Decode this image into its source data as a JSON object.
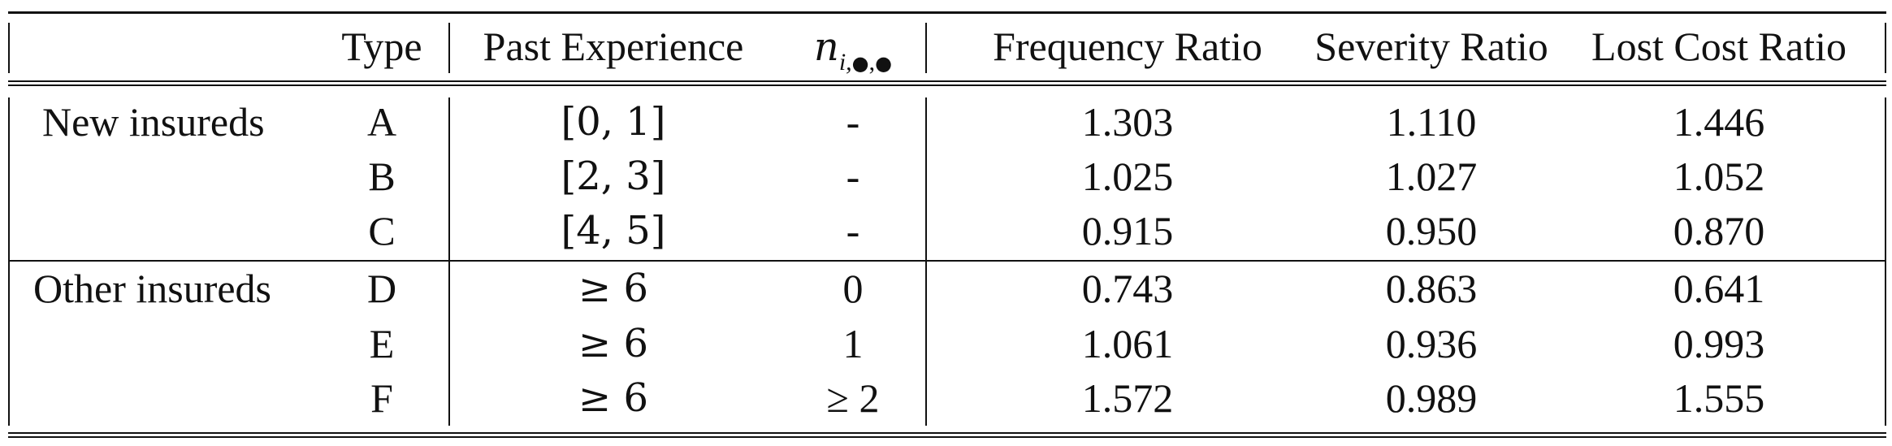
{
  "table": {
    "headers": {
      "group": "",
      "type": "Type",
      "past_experience": "Past Experience",
      "n_main": "n",
      "n_sub": "i,",
      "n_dot_1": "●",
      "n_comma": ",",
      "n_dot_2": "●",
      "frequency_ratio": "Frequency Ratio",
      "severity_ratio": "Severity Ratio",
      "lost_cost_ratio": "Lost Cost Ratio"
    },
    "rows": [
      {
        "group": "New insureds",
        "type": "A",
        "past_experience": "[0, 1]",
        "n": "-",
        "frequency_ratio": "1.303",
        "severity_ratio": "1.110",
        "lost_cost_ratio": "1.446"
      },
      {
        "group": "",
        "type": "B",
        "past_experience": "[2, 3]",
        "n": "-",
        "frequency_ratio": "1.025",
        "severity_ratio": "1.027",
        "lost_cost_ratio": "1.052"
      },
      {
        "group": "",
        "type": "C",
        "past_experience": "[4, 5]",
        "n": "-",
        "frequency_ratio": "0.915",
        "severity_ratio": "0.950",
        "lost_cost_ratio": "0.870"
      },
      {
        "group": "Other insureds",
        "type": "D",
        "past_experience": "≥ 6",
        "n": "0",
        "frequency_ratio": "0.743",
        "severity_ratio": "0.863",
        "lost_cost_ratio": "0.641"
      },
      {
        "group": "",
        "type": "E",
        "past_experience": "≥ 6",
        "n": "1",
        "frequency_ratio": "1.061",
        "severity_ratio": "0.936",
        "lost_cost_ratio": "0.993"
      },
      {
        "group": "",
        "type": "F",
        "past_experience": "≥ 6",
        "n": "≥ 2",
        "frequency_ratio": "1.572",
        "severity_ratio": "0.989",
        "lost_cost_ratio": "1.555"
      }
    ]
  }
}
